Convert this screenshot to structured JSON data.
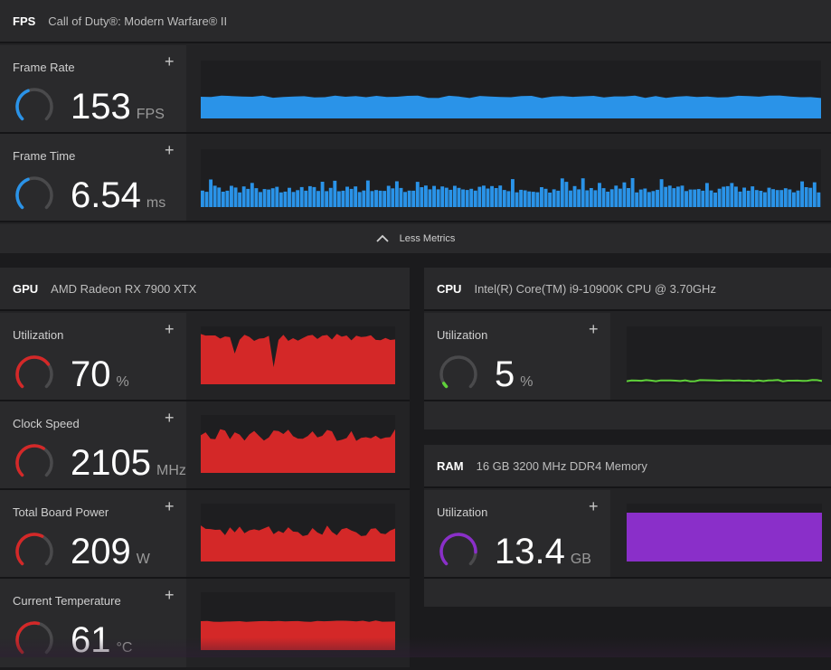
{
  "colors": {
    "fps": "#2a93e8",
    "gpu": "#d42828",
    "cpu": "#5fd13a",
    "ram": "#8a2fc9",
    "track": "#4a4a4c"
  },
  "fps_panel": {
    "category": "FPS",
    "game": "Call of Duty®: Modern Warfare® II",
    "less_metrics": "Less Metrics",
    "metrics": [
      {
        "label": "Frame Rate",
        "value": "153",
        "unit": "FPS",
        "gauge_fraction": 0.42
      },
      {
        "label": "Frame Time",
        "value": "6.54",
        "unit": "ms",
        "gauge_fraction": 0.42
      }
    ]
  },
  "gpu_panel": {
    "category": "GPU",
    "device": "AMD Radeon RX 7900 XTX",
    "metrics": [
      {
        "label": "Utilization",
        "value": "70",
        "unit": "%",
        "gauge_fraction": 0.7
      },
      {
        "label": "Clock Speed",
        "value": "2105",
        "unit": "MHz",
        "gauge_fraction": 0.62
      },
      {
        "label": "Total Board Power",
        "value": "209",
        "unit": "W",
        "gauge_fraction": 0.6
      },
      {
        "label": "Current Temperature",
        "value": "61",
        "unit": "°C",
        "gauge_fraction": 0.55
      }
    ]
  },
  "cpu_panel": {
    "category": "CPU",
    "device": "Intel(R) Core(TM) i9-10900K CPU @ 3.70GHz",
    "metrics": [
      {
        "label": "Utilization",
        "value": "5",
        "unit": "%",
        "gauge_fraction": 0.05
      }
    ]
  },
  "ram_panel": {
    "category": "RAM",
    "device": "16 GB 3200 MHz DDR4 Memory",
    "metrics": [
      {
        "label": "Utilization",
        "value": "13.4",
        "unit": "GB",
        "gauge_fraction": 0.84
      }
    ]
  }
}
